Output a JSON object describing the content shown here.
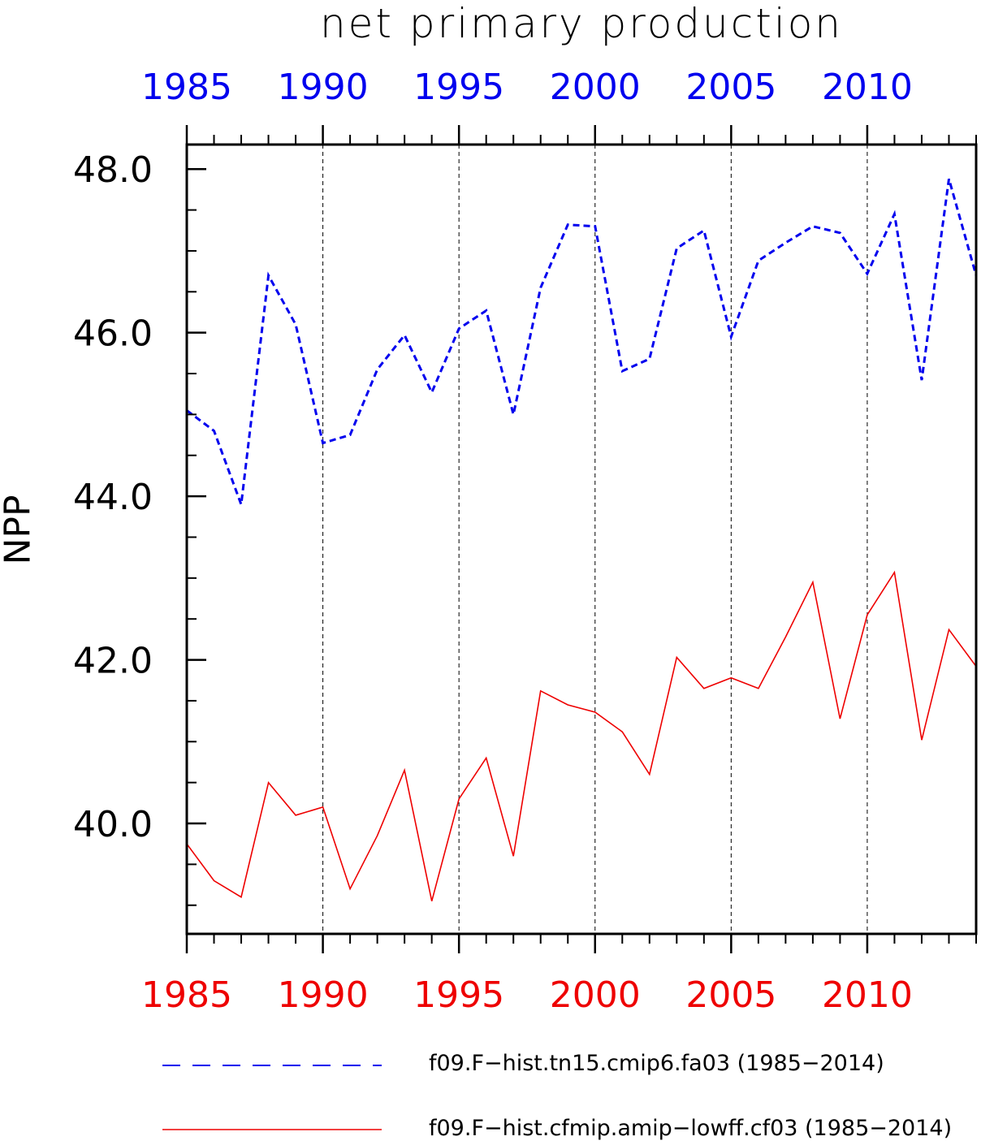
{
  "chart_data": {
    "type": "line",
    "title": "net primary production",
    "ylabel": "NPP",
    "xlabel": "",
    "xlim": [
      1985,
      2014
    ],
    "ylim": [
      38.65,
      48.3
    ],
    "yticks_major": [
      40.0,
      42.0,
      44.0,
      46.0,
      48.0
    ],
    "ytick_labels": [
      "40.0",
      "42.0",
      "44.0",
      "46.0",
      "48.0"
    ],
    "xticks_major": [
      1985,
      1990,
      1995,
      2000,
      2005,
      2010
    ],
    "top_xtick_labels": [
      "1985",
      "1990",
      "1995",
      "2000",
      "2005",
      "2010"
    ],
    "bottom_xtick_labels": [
      "1985",
      "1990",
      "1995",
      "2000",
      "2005",
      "2010"
    ],
    "top_axis_color": "#0000ee",
    "bottom_axis_color": "#ee0000",
    "grid": "vertical dashed at major x ticks",
    "legend_position": "bottom",
    "x": [
      1985,
      1986,
      1987,
      1988,
      1989,
      1990,
      1991,
      1992,
      1993,
      1994,
      1995,
      1996,
      1997,
      1998,
      1999,
      2000,
      2001,
      2002,
      2003,
      2004,
      2005,
      2006,
      2007,
      2008,
      2009,
      2010,
      2011,
      2012,
      2013,
      2014
    ],
    "series": [
      {
        "name": "f09.F−hist.tn15.cmip6.fa03 (1985−2014)",
        "color": "#0000ee",
        "dash": "dashed",
        "values": [
          45.05,
          44.8,
          43.9,
          46.7,
          46.1,
          44.65,
          44.75,
          45.55,
          45.97,
          45.27,
          46.05,
          46.27,
          45.0,
          46.55,
          47.32,
          47.3,
          45.53,
          45.68,
          47.03,
          47.25,
          45.95,
          46.88,
          47.1,
          47.3,
          47.22,
          46.72,
          47.45,
          45.42,
          47.88,
          46.7
        ]
      },
      {
        "name": "f09.F−hist.cfmip.amip−lowff.cf03 (1985−2014)",
        "color": "#ee0000",
        "dash": "solid",
        "values": [
          39.75,
          39.3,
          39.1,
          40.5,
          40.1,
          40.2,
          39.2,
          39.85,
          40.65,
          39.05,
          40.3,
          40.8,
          39.6,
          41.62,
          41.45,
          41.36,
          41.12,
          40.6,
          42.03,
          41.65,
          41.78,
          41.65,
          42.28,
          42.95,
          41.28,
          42.55,
          43.07,
          41.02,
          42.37,
          41.92
        ]
      }
    ]
  }
}
